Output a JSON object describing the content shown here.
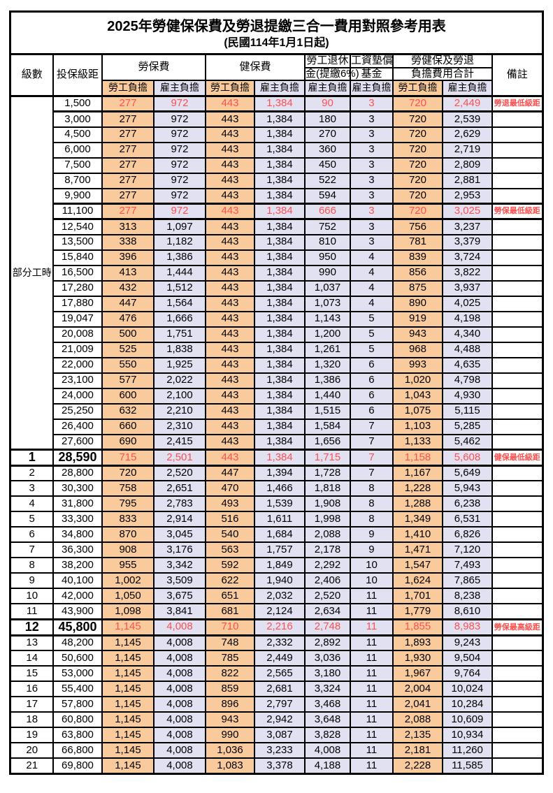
{
  "title": "2025年勞健保保費及勞退提繳三合一費用對照參考用表",
  "subtitle": "(民國114年1月1日起)",
  "colors": {
    "employee_column_fill": "#F9CB9C",
    "employer_column_fill": "#E2E1F2",
    "key_row_text": "#FF5050",
    "border": "#000000"
  },
  "header": {
    "level": "級數",
    "bracket": "投保級距",
    "labor_ins": "勞保費",
    "health_ins": "健保費",
    "pension_line1": "勞工退休",
    "pension_line2": "金(提繳6%)",
    "wage_fund_line1": "工資墊償",
    "wage_fund_line2": "基金",
    "total_line1": "勞健保及勞退",
    "total_line2": "負擔費用合計",
    "remark": "備註",
    "employee": "勞工負擔",
    "employer": "雇主負擔"
  },
  "part_time": {
    "label": "部分工時",
    "span": 23
  },
  "rows": [
    {
      "level": "",
      "bracket": "1,500",
      "v": [
        "277",
        "972",
        "443",
        "1,384",
        "90",
        "3",
        "720",
        "2,449"
      ],
      "remark": "勞退最低級距",
      "key": true,
      "big": false
    },
    {
      "level": "",
      "bracket": "3,000",
      "v": [
        "277",
        "972",
        "443",
        "1,384",
        "180",
        "3",
        "720",
        "2,539"
      ],
      "remark": "",
      "key": false,
      "big": false
    },
    {
      "level": "",
      "bracket": "4,500",
      "v": [
        "277",
        "972",
        "443",
        "1,384",
        "270",
        "3",
        "720",
        "2,629"
      ],
      "remark": "",
      "key": false,
      "big": false
    },
    {
      "level": "",
      "bracket": "6,000",
      "v": [
        "277",
        "972",
        "443",
        "1,384",
        "360",
        "3",
        "720",
        "2,719"
      ],
      "remark": "",
      "key": false,
      "big": false
    },
    {
      "level": "",
      "bracket": "7,500",
      "v": [
        "277",
        "972",
        "443",
        "1,384",
        "450",
        "3",
        "720",
        "2,809"
      ],
      "remark": "",
      "key": false,
      "big": false
    },
    {
      "level": "",
      "bracket": "8,700",
      "v": [
        "277",
        "972",
        "443",
        "1,384",
        "522",
        "3",
        "720",
        "2,881"
      ],
      "remark": "",
      "key": false,
      "big": false
    },
    {
      "level": "",
      "bracket": "9,900",
      "v": [
        "277",
        "972",
        "443",
        "1,384",
        "594",
        "3",
        "720",
        "2,953"
      ],
      "remark": "",
      "key": false,
      "big": false
    },
    {
      "level": "",
      "bracket": "11,100",
      "v": [
        "277",
        "972",
        "443",
        "1,384",
        "666",
        "3",
        "720",
        "3,025"
      ],
      "remark": "勞保最低級距",
      "key": true,
      "big": false
    },
    {
      "level": "",
      "bracket": "12,540",
      "v": [
        "313",
        "1,097",
        "443",
        "1,384",
        "752",
        "3",
        "756",
        "3,237"
      ],
      "remark": "",
      "key": false,
      "big": false
    },
    {
      "level": "",
      "bracket": "13,500",
      "v": [
        "338",
        "1,182",
        "443",
        "1,384",
        "810",
        "3",
        "781",
        "3,379"
      ],
      "remark": "",
      "key": false,
      "big": false
    },
    {
      "level": "",
      "bracket": "15,840",
      "v": [
        "396",
        "1,386",
        "443",
        "1,384",
        "950",
        "4",
        "839",
        "3,724"
      ],
      "remark": "",
      "key": false,
      "big": false
    },
    {
      "level": "",
      "bracket": "16,500",
      "v": [
        "413",
        "1,444",
        "443",
        "1,384",
        "990",
        "4",
        "856",
        "3,822"
      ],
      "remark": "",
      "key": false,
      "big": false
    },
    {
      "level": "",
      "bracket": "17,280",
      "v": [
        "432",
        "1,512",
        "443",
        "1,384",
        "1,037",
        "4",
        "875",
        "3,937"
      ],
      "remark": "",
      "key": false,
      "big": false
    },
    {
      "level": "",
      "bracket": "17,880",
      "v": [
        "447",
        "1,564",
        "443",
        "1,384",
        "1,073",
        "4",
        "890",
        "4,025"
      ],
      "remark": "",
      "key": false,
      "big": false
    },
    {
      "level": "",
      "bracket": "19,047",
      "v": [
        "476",
        "1,666",
        "443",
        "1,384",
        "1,143",
        "5",
        "919",
        "4,198"
      ],
      "remark": "",
      "key": false,
      "big": false
    },
    {
      "level": "",
      "bracket": "20,008",
      "v": [
        "500",
        "1,751",
        "443",
        "1,384",
        "1,200",
        "5",
        "943",
        "4,340"
      ],
      "remark": "",
      "key": false,
      "big": false
    },
    {
      "level": "",
      "bracket": "21,009",
      "v": [
        "525",
        "1,838",
        "443",
        "1,384",
        "1,261",
        "5",
        "968",
        "4,488"
      ],
      "remark": "",
      "key": false,
      "big": false
    },
    {
      "level": "",
      "bracket": "22,000",
      "v": [
        "550",
        "1,925",
        "443",
        "1,384",
        "1,320",
        "6",
        "993",
        "4,635"
      ],
      "remark": "",
      "key": false,
      "big": false
    },
    {
      "level": "",
      "bracket": "23,100",
      "v": [
        "577",
        "2,022",
        "443",
        "1,384",
        "1,386",
        "6",
        "1,020",
        "4,798"
      ],
      "remark": "",
      "key": false,
      "big": false
    },
    {
      "level": "",
      "bracket": "24,000",
      "v": [
        "600",
        "2,100",
        "443",
        "1,384",
        "1,440",
        "6",
        "1,043",
        "4,930"
      ],
      "remark": "",
      "key": false,
      "big": false
    },
    {
      "level": "",
      "bracket": "25,250",
      "v": [
        "632",
        "2,210",
        "443",
        "1,384",
        "1,515",
        "6",
        "1,075",
        "5,115"
      ],
      "remark": "",
      "key": false,
      "big": false
    },
    {
      "level": "",
      "bracket": "26,400",
      "v": [
        "660",
        "2,310",
        "443",
        "1,384",
        "1,584",
        "7",
        "1,103",
        "5,285"
      ],
      "remark": "",
      "key": false,
      "big": false
    },
    {
      "level": "",
      "bracket": "27,600",
      "v": [
        "690",
        "2,415",
        "443",
        "1,384",
        "1,656",
        "7",
        "1,133",
        "5,462"
      ],
      "remark": "",
      "key": false,
      "big": false
    },
    {
      "level": "1",
      "bracket": "28,590",
      "v": [
        "715",
        "2,501",
        "443",
        "1,384",
        "1,715",
        "7",
        "1,158",
        "5,608"
      ],
      "remark": "健保最低級距",
      "key": true,
      "big": true
    },
    {
      "level": "2",
      "bracket": "28,800",
      "v": [
        "720",
        "2,520",
        "447",
        "1,394",
        "1,728",
        "7",
        "1,167",
        "5,649"
      ],
      "remark": "",
      "key": false,
      "big": false
    },
    {
      "level": "3",
      "bracket": "30,300",
      "v": [
        "758",
        "2,651",
        "470",
        "1,466",
        "1,818",
        "8",
        "1,228",
        "5,943"
      ],
      "remark": "",
      "key": false,
      "big": false
    },
    {
      "level": "4",
      "bracket": "31,800",
      "v": [
        "795",
        "2,783",
        "493",
        "1,539",
        "1,908",
        "8",
        "1,288",
        "6,238"
      ],
      "remark": "",
      "key": false,
      "big": false
    },
    {
      "level": "5",
      "bracket": "33,300",
      "v": [
        "833",
        "2,914",
        "516",
        "1,611",
        "1,998",
        "8",
        "1,349",
        "6,531"
      ],
      "remark": "",
      "key": false,
      "big": false
    },
    {
      "level": "6",
      "bracket": "34,800",
      "v": [
        "870",
        "3,045",
        "540",
        "1,684",
        "2,088",
        "9",
        "1,410",
        "6,826"
      ],
      "remark": "",
      "key": false,
      "big": false
    },
    {
      "level": "7",
      "bracket": "36,300",
      "v": [
        "908",
        "3,176",
        "563",
        "1,757",
        "2,178",
        "9",
        "1,471",
        "7,120"
      ],
      "remark": "",
      "key": false,
      "big": false
    },
    {
      "level": "8",
      "bracket": "38,200",
      "v": [
        "955",
        "3,342",
        "592",
        "1,849",
        "2,292",
        "10",
        "1,547",
        "7,493"
      ],
      "remark": "",
      "key": false,
      "big": false
    },
    {
      "level": "9",
      "bracket": "40,100",
      "v": [
        "1,002",
        "3,509",
        "622",
        "1,940",
        "2,406",
        "10",
        "1,624",
        "7,865"
      ],
      "remark": "",
      "key": false,
      "big": false
    },
    {
      "level": "10",
      "bracket": "42,000",
      "v": [
        "1,050",
        "3,675",
        "651",
        "2,032",
        "2,520",
        "11",
        "1,701",
        "8,238"
      ],
      "remark": "",
      "key": false,
      "big": false
    },
    {
      "level": "11",
      "bracket": "43,900",
      "v": [
        "1,098",
        "3,841",
        "681",
        "2,124",
        "2,634",
        "11",
        "1,779",
        "8,610"
      ],
      "remark": "",
      "key": false,
      "big": false
    },
    {
      "level": "12",
      "bracket": "45,800",
      "v": [
        "1,145",
        "4,008",
        "710",
        "2,216",
        "2,748",
        "11",
        "1,855",
        "8,983"
      ],
      "remark": "勞保最高級距",
      "key": true,
      "big": true
    },
    {
      "level": "13",
      "bracket": "48,200",
      "v": [
        "1,145",
        "4,008",
        "748",
        "2,332",
        "2,892",
        "11",
        "1,893",
        "9,243"
      ],
      "remark": "",
      "key": false,
      "big": false
    },
    {
      "level": "14",
      "bracket": "50,600",
      "v": [
        "1,145",
        "4,008",
        "785",
        "2,449",
        "3,036",
        "11",
        "1,930",
        "9,504"
      ],
      "remark": "",
      "key": false,
      "big": false
    },
    {
      "level": "15",
      "bracket": "53,000",
      "v": [
        "1,145",
        "4,008",
        "822",
        "2,565",
        "3,180",
        "11",
        "1,967",
        "9,764"
      ],
      "remark": "",
      "key": false,
      "big": false
    },
    {
      "level": "16",
      "bracket": "55,400",
      "v": [
        "1,145",
        "4,008",
        "859",
        "2,681",
        "3,324",
        "11",
        "2,004",
        "10,024"
      ],
      "remark": "",
      "key": false,
      "big": false
    },
    {
      "level": "17",
      "bracket": "57,800",
      "v": [
        "1,145",
        "4,008",
        "896",
        "2,797",
        "3,468",
        "11",
        "2,041",
        "10,284"
      ],
      "remark": "",
      "key": false,
      "big": false
    },
    {
      "level": "18",
      "bracket": "60,800",
      "v": [
        "1,145",
        "4,008",
        "943",
        "2,942",
        "3,648",
        "11",
        "2,088",
        "10,609"
      ],
      "remark": "",
      "key": false,
      "big": false
    },
    {
      "level": "19",
      "bracket": "63,800",
      "v": [
        "1,145",
        "4,008",
        "990",
        "3,087",
        "3,828",
        "11",
        "2,135",
        "10,934"
      ],
      "remark": "",
      "key": false,
      "big": false
    },
    {
      "level": "20",
      "bracket": "66,800",
      "v": [
        "1,145",
        "4,008",
        "1,036",
        "3,233",
        "4,008",
        "11",
        "2,181",
        "11,260"
      ],
      "remark": "",
      "key": false,
      "big": false
    },
    {
      "level": "21",
      "bracket": "69,800",
      "v": [
        "1,145",
        "4,008",
        "1,083",
        "3,378",
        "4,188",
        "11",
        "2,228",
        "11,585"
      ],
      "remark": "",
      "key": false,
      "big": false
    }
  ]
}
